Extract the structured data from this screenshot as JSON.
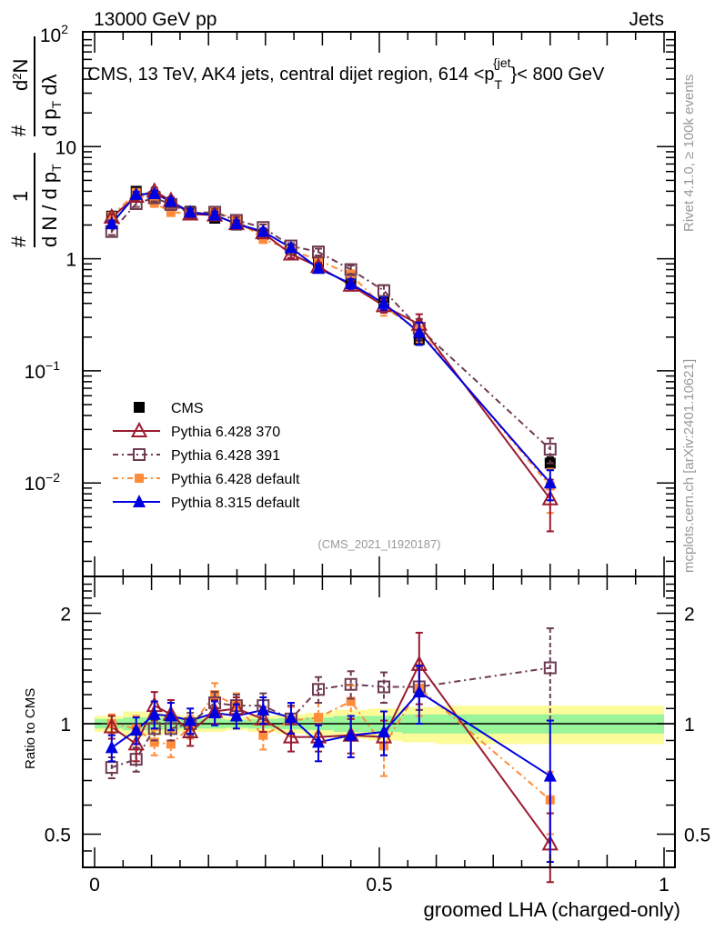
{
  "header": {
    "left": "13000 GeV pp",
    "right": "Jets"
  },
  "side_labels": {
    "rivet": "Rivet 4.1.0, ≥ 100k events",
    "mcplots": "mcplots.cern.ch [arXiv:2401.10621]"
  },
  "colors": {
    "CMS": "#000000",
    "Pythia 6.428 370": "#9b1b30",
    "Pythia 6.428 391": "#6e3b52",
    "Pythia 6.428 default": "#ff8c3a",
    "Pythia 8.315 default": "#0000e0",
    "band_inner": "#99f599",
    "band_outer": "#fbfb99"
  },
  "chart_data": [
    {
      "type": "scatter",
      "panel": "main",
      "title": "CMS, 13 TeV, AK4 jets, central dijet region, 614 <p_T^{jet}< 800 GeV",
      "title_parts": {
        "main": "CMS, 13 TeV, AK4 jets, central dijet region, 614 <p",
        "sup": "{jet",
        "sub": "T",
        "tail": "}< 800 GeV"
      },
      "ylabel": "1/dN/dp_T  d²N/dp_T dλ",
      "yscale": "log",
      "ylim": [
        0.0015,
        100
      ],
      "xlim": [
        -0.02,
        1.02
      ],
      "ytick_labels": [
        {
          "value": 100,
          "base": "10",
          "exp": "2"
        },
        {
          "value": 10,
          "base": "10",
          "exp": ""
        },
        {
          "value": 1,
          "base": "1",
          "exp": ""
        },
        {
          "value": 0.1,
          "base": "10",
          "exp": "−1"
        },
        {
          "value": 0.01,
          "base": "10",
          "exp": "−2"
        }
      ],
      "annotation": "(CMS_2021_I1920187)",
      "legend_position": "lower-left",
      "x": [
        0.03,
        0.073,
        0.105,
        0.134,
        0.168,
        0.211,
        0.249,
        0.296,
        0.345,
        0.393,
        0.45,
        0.508,
        0.57,
        0.8
      ],
      "series": [
        {
          "name": "CMS",
          "marker": "filled-square",
          "line": "none",
          "values": [
            2.4,
            4.0,
            3.6,
            3.1,
            2.65,
            2.3,
            2.0,
            1.65,
            1.2,
            0.93,
            0.62,
            0.42,
            0.19,
            0.015
          ],
          "err": [
            0.1,
            0.15,
            0.15,
            0.12,
            0.1,
            0.1,
            0.08,
            0.07,
            0.05,
            0.05,
            0.04,
            0.04,
            0.02,
            0.002
          ]
        },
        {
          "name": "Pythia 6.428 370",
          "marker": "open-triangle",
          "line": "solid",
          "values": [
            2.35,
            3.6,
            4.0,
            3.3,
            2.5,
            2.45,
            2.05,
            1.7,
            1.1,
            0.85,
            0.58,
            0.38,
            0.26,
            0.0072
          ],
          "err": [
            0.15,
            0.25,
            0.3,
            0.25,
            0.2,
            0.2,
            0.15,
            0.12,
            0.08,
            0.07,
            0.06,
            0.05,
            0.06,
            0.0035
          ]
        },
        {
          "name": "Pythia 6.428 391",
          "marker": "open-square",
          "line": "dashdot",
          "values": [
            1.75,
            3.1,
            3.5,
            3.05,
            2.55,
            2.6,
            2.2,
            1.9,
            1.3,
            1.15,
            0.8,
            0.52,
            0.24,
            0.02
          ],
          "err": [
            0.12,
            0.2,
            0.25,
            0.2,
            0.18,
            0.18,
            0.15,
            0.12,
            0.08,
            0.08,
            0.07,
            0.06,
            0.05,
            0.005
          ]
        },
        {
          "name": "Pythia 6.428 default",
          "marker": "filled-square",
          "line": "dashdot",
          "values": [
            2.4,
            3.9,
            3.15,
            2.6,
            2.55,
            2.6,
            2.25,
            1.5,
            1.2,
            0.97,
            0.72,
            0.37,
            0.23,
            0.0094
          ],
          "err": [
            0.15,
            0.25,
            0.25,
            0.2,
            0.18,
            0.18,
            0.15,
            0.12,
            0.08,
            0.08,
            0.07,
            0.06,
            0.05,
            0.004
          ]
        },
        {
          "name": "Pythia 8.315 default",
          "marker": "filled-triangle",
          "line": "solid",
          "values": [
            2.05,
            3.75,
            3.8,
            3.25,
            2.6,
            2.45,
            2.05,
            1.75,
            1.25,
            0.82,
            0.6,
            0.4,
            0.22,
            0.01
          ],
          "err": [
            0.12,
            0.2,
            0.25,
            0.2,
            0.18,
            0.18,
            0.15,
            0.12,
            0.08,
            0.07,
            0.06,
            0.05,
            0.05,
            0.003
          ]
        }
      ]
    },
    {
      "type": "scatter",
      "panel": "ratio",
      "ylabel": "Ratio to CMS",
      "xlabel": "groomed LHA (charged-only)",
      "yscale": "log",
      "ylim": [
        0.4,
        2.5
      ],
      "xlim": [
        -0.02,
        1.02
      ],
      "yticks": [
        0.5,
        1,
        2
      ],
      "ytick_labels": [
        "0.5",
        "1",
        "2"
      ],
      "xticks": [
        0,
        0.5,
        1
      ],
      "xtick_labels": [
        "0",
        "0.5",
        "1"
      ],
      "reference_line": 1,
      "bands": {
        "edges": [
          0.0,
          0.05,
          0.09,
          0.12,
          0.15,
          0.18,
          0.23,
          0.27,
          0.32,
          0.37,
          0.42,
          0.48,
          0.54,
          0.6,
          1.0
        ],
        "inner": [
          0.03,
          0.04,
          0.04,
          0.035,
          0.03,
          0.03,
          0.025,
          0.03,
          0.035,
          0.04,
          0.05,
          0.05,
          0.06,
          0.06
        ],
        "outer": [
          0.05,
          0.08,
          0.07,
          0.06,
          0.05,
          0.05,
          0.04,
          0.05,
          0.06,
          0.07,
          0.09,
          0.1,
          0.11,
          0.12
        ]
      },
      "x": [
        0.03,
        0.073,
        0.105,
        0.134,
        0.168,
        0.211,
        0.249,
        0.296,
        0.345,
        0.393,
        0.45,
        0.508,
        0.57,
        0.8
      ],
      "series": [
        {
          "name": "Pythia 6.428 370",
          "marker": "open-triangle",
          "line": "solid",
          "values": [
            0.98,
            0.88,
            1.12,
            1.06,
            0.95,
            1.08,
            1.1,
            1.03,
            0.92,
            0.92,
            0.93,
            0.92,
            1.45,
            0.47
          ],
          "err": [
            0.07,
            0.09,
            0.1,
            0.1,
            0.08,
            0.08,
            0.08,
            0.08,
            0.08,
            0.08,
            0.1,
            0.1,
            0.32,
            0.1
          ]
        },
        {
          "name": "Pythia 6.428 391",
          "marker": "open-square",
          "line": "dashdot",
          "values": [
            0.76,
            0.8,
            0.97,
            0.97,
            1.0,
            1.14,
            1.12,
            1.12,
            1.03,
            1.24,
            1.28,
            1.26,
            1.26,
            1.42
          ],
          "err": [
            0.05,
            0.06,
            0.07,
            0.07,
            0.07,
            0.08,
            0.08,
            0.09,
            0.09,
            0.1,
            0.11,
            0.12,
            0.17,
            0.4
          ]
        },
        {
          "name": "Pythia 6.428 default",
          "marker": "filled-square",
          "line": "dashdot",
          "values": [
            1.0,
            0.97,
            0.89,
            0.88,
            0.98,
            1.2,
            1.12,
            0.93,
            1.02,
            1.04,
            1.15,
            0.87,
            1.25,
            0.62
          ],
          "err": [
            0.06,
            0.08,
            0.07,
            0.07,
            0.07,
            0.09,
            0.09,
            0.08,
            0.09,
            0.1,
            0.12,
            0.15,
            0.2,
            0.12
          ]
        },
        {
          "name": "Pythia 8.315 default",
          "marker": "filled-triangle",
          "line": "solid",
          "values": [
            0.86,
            0.96,
            1.06,
            1.05,
            1.02,
            1.07,
            1.05,
            1.09,
            1.04,
            0.89,
            0.93,
            0.95,
            1.22,
            0.72
          ],
          "err": [
            0.07,
            0.08,
            0.09,
            0.09,
            0.08,
            0.08,
            0.08,
            0.09,
            0.1,
            0.1,
            0.12,
            0.13,
            0.22,
            0.3
          ]
        }
      ]
    }
  ]
}
